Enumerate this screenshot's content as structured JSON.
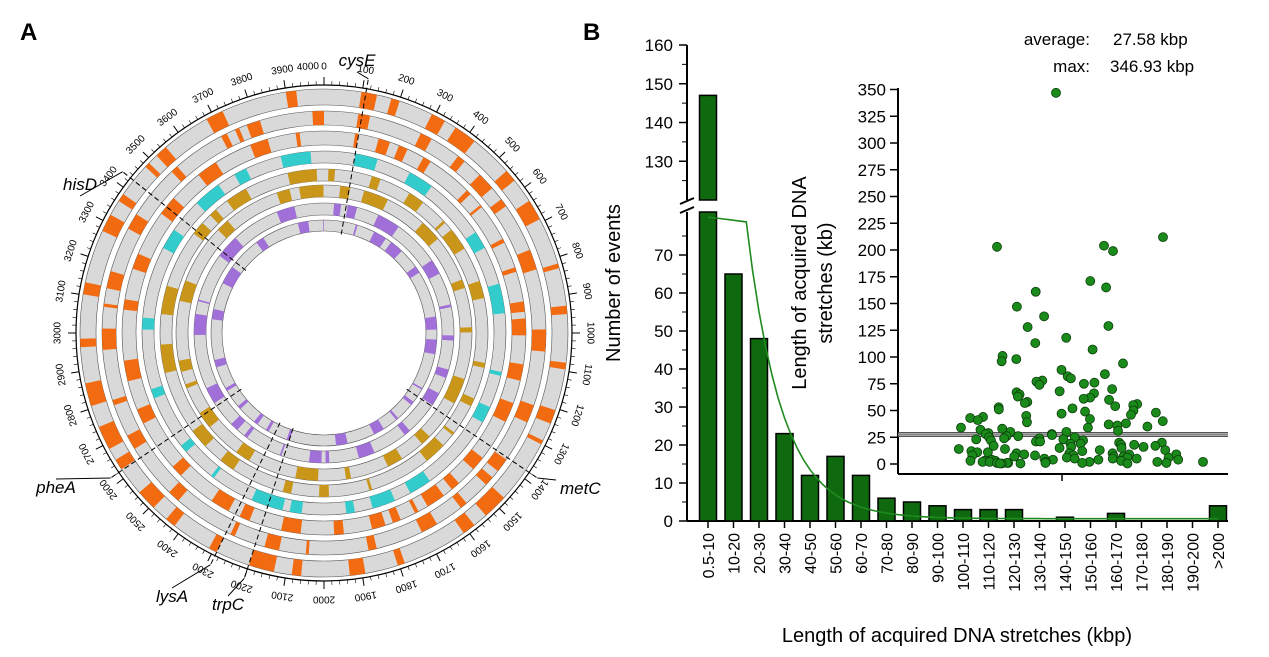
{
  "panel_a": {
    "label": "A",
    "tick_labels": [
      "0",
      "100",
      "200",
      "300",
      "400",
      "500",
      "600",
      "700",
      "800",
      "900",
      "1000",
      "1100",
      "1200",
      "1300",
      "1400",
      "1500",
      "1600",
      "1700",
      "1800",
      "1900",
      "2000",
      "2100",
      "2200",
      "2300",
      "2400",
      "2500",
      "2600",
      "2700",
      "2800",
      "2900",
      "3000",
      "3100",
      "3200",
      "3300",
      "3400",
      "3500",
      "3600",
      "3700",
      "3800",
      "3900",
      "4000"
    ],
    "gene_labels": [
      "cysE",
      "metC",
      "trpC",
      "lysA",
      "pheA",
      "hisD"
    ],
    "colors": {
      "orange": "#f26b10",
      "cyan": "#33cccc",
      "gold": "#c9961a",
      "purple": "#a070d8",
      "track": "#d9d9d9"
    }
  },
  "panel_b": {
    "label": "B",
    "stats": {
      "average_label": "average:",
      "average_value": "27.58 kbp",
      "max_label": "max:",
      "max_value": "346.93 kbp"
    }
  },
  "chart_data": [
    {
      "type": "bar",
      "title": "",
      "xlabel": "Length of acquired DNA stretches (kbp)",
      "ylabel": "Number of events",
      "categories": [
        "0.5-10",
        "10-20",
        "20-30",
        "30-40",
        "40-50",
        "50-60",
        "60-70",
        "70-80",
        "80-90",
        "90-100",
        "100-110",
        "110-120",
        "120-130",
        "130-140",
        "140-150",
        "150-160",
        "160-170",
        "170-180",
        "180-190",
        "190-200",
        ">200"
      ],
      "values": [
        147,
        65,
        48,
        23,
        12,
        17,
        12,
        6,
        5,
        4,
        3,
        3,
        3,
        0,
        1,
        0,
        2,
        0,
        0,
        0,
        4
      ],
      "y_axis_break": [
        80,
        120
      ],
      "ylim": [
        0,
        160
      ],
      "y_ticks_lower": [
        "0",
        "10",
        "20",
        "30",
        "40",
        "50",
        "60",
        "70"
      ],
      "y_ticks_upper": [
        "130",
        "140",
        "150",
        "160"
      ],
      "bar_color": "#0f6a0f",
      "fit_curve": "exponential decay",
      "fit_color": "#1f8a1f"
    },
    {
      "type": "scatter",
      "ylabel": "Length of acquired DNA stretches (kb)",
      "ylim": [
        -10,
        360
      ],
      "y_ticks": [
        "0",
        "25",
        "50",
        "75",
        "100",
        "125",
        "150",
        "175",
        "200",
        "225",
        "250",
        "275",
        "300",
        "325",
        "350"
      ],
      "mean_line": 27.58,
      "point_color": "#1a8a1a",
      "note": "",
      "y": [
        346.9,
        212,
        204,
        203,
        199,
        171,
        165,
        161,
        147,
        138,
        129,
        128,
        118,
        113,
        107,
        101,
        98,
        96,
        94,
        88,
        84,
        82,
        80,
        78,
        77,
        76,
        75,
        74,
        70,
        68,
        67,
        66,
        65,
        63,
        62,
        61,
        60,
        58,
        57,
        56,
        55,
        54,
        53,
        52,
        51,
        50,
        49,
        48,
        47,
        46,
        45,
        44,
        43,
        42,
        41,
        40,
        39,
        38,
        37,
        36,
        35,
        34,
        34,
        33,
        32,
        31,
        30,
        30,
        29,
        28,
        28,
        27,
        26,
        26,
        25,
        25,
        24,
        24,
        23,
        23,
        22,
        22,
        21,
        21,
        20,
        20,
        19,
        19,
        18,
        18,
        17,
        17,
        16,
        16,
        15,
        15,
        14,
        14,
        13,
        13,
        12,
        12,
        11,
        11,
        10,
        10,
        10,
        9,
        9,
        9,
        8,
        8,
        8,
        7,
        7,
        7,
        6,
        6,
        6,
        5,
        5,
        5,
        5,
        4,
        4,
        4,
        4,
        3,
        3,
        3,
        3,
        2,
        2,
        2,
        2,
        2,
        1,
        1,
        1,
        1,
        1,
        1,
        0.5,
        0.5,
        0.5,
        0.5
      ]
    }
  ]
}
